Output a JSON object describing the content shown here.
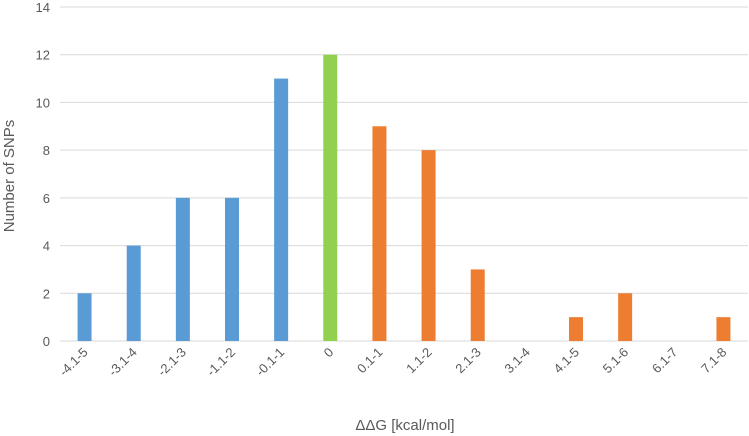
{
  "chart_data": {
    "type": "bar",
    "title": "",
    "xlabel": "ΔΔG [kcal/mol]",
    "ylabel": "Number of SNPs",
    "categories": [
      "-4.1-5",
      "-3.1-4",
      "-2.1-3",
      "-1.1-2",
      "-0.1-1",
      "0",
      "0.1-1",
      "1.1-2",
      "2.1-3",
      "3.1-4",
      "4.1-5",
      "5.1-6",
      "6.1-7",
      "7.1-8"
    ],
    "values": [
      2,
      4,
      6,
      6,
      11,
      12,
      9,
      8,
      3,
      0,
      1,
      2,
      0,
      1
    ],
    "bar_colors": [
      "#5b9bd5",
      "#5b9bd5",
      "#5b9bd5",
      "#5b9bd5",
      "#5b9bd5",
      "#92d050",
      "#ed7d31",
      "#ed7d31",
      "#ed7d31",
      "#ed7d31",
      "#ed7d31",
      "#ed7d31",
      "#ed7d31",
      "#ed7d31"
    ],
    "ylim": [
      0,
      14
    ],
    "yticks": [
      0,
      2,
      4,
      6,
      8,
      10,
      12,
      14
    ],
    "grid": true,
    "legend": "none"
  }
}
